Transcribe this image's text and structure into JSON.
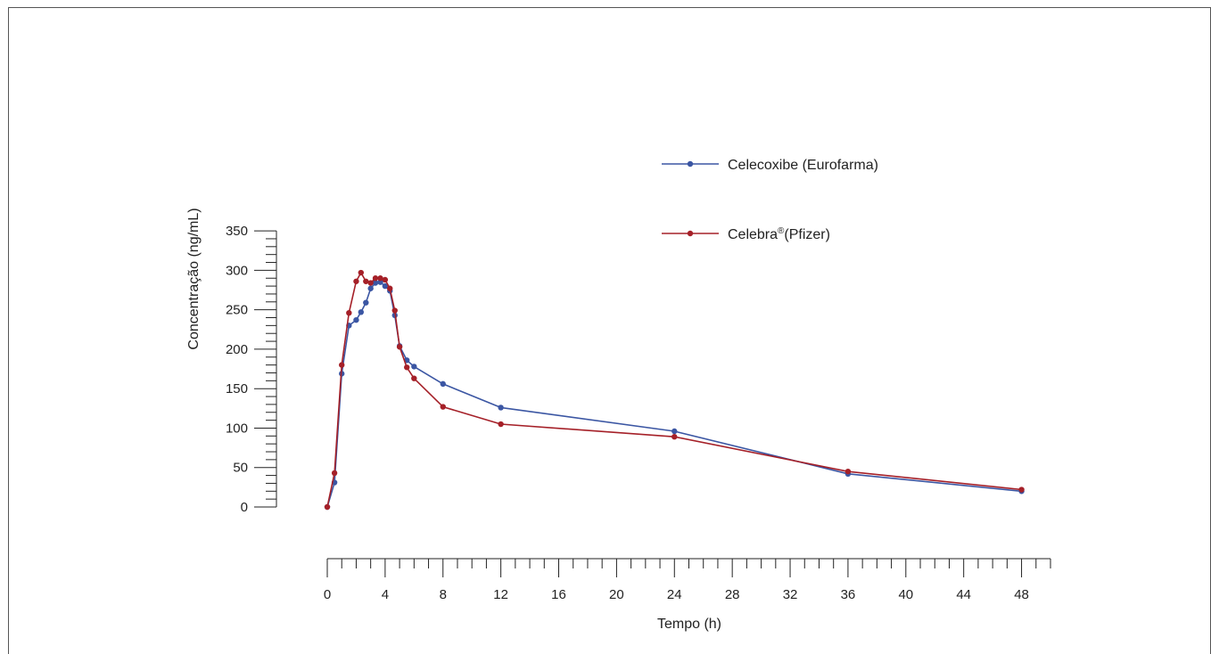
{
  "chart_data": {
    "type": "line",
    "xlabel": "Tempo (h)",
    "ylabel": "Concentração (ng/mL)",
    "xlim": [
      0,
      50
    ],
    "ylim": [
      0,
      350
    ],
    "x_ticks": [
      0,
      4,
      8,
      12,
      16,
      20,
      24,
      28,
      32,
      36,
      40,
      44,
      48
    ],
    "y_ticks": [
      0,
      50,
      100,
      150,
      200,
      250,
      300,
      350
    ],
    "grid": false,
    "legend_position": "top-right",
    "series": [
      {
        "name": "Celecoxibe (Eurofarma)",
        "color": "#3b56a3",
        "x": [
          0,
          0.5,
          1,
          1.5,
          2,
          2.33,
          2.67,
          3,
          3.33,
          3.67,
          4,
          4.33,
          4.67,
          5,
          5.5,
          6,
          8,
          12,
          24,
          36,
          48
        ],
        "y": [
          0,
          31,
          169,
          230,
          237,
          247,
          259,
          277,
          284,
          285,
          280,
          274,
          243,
          204,
          186,
          178,
          156,
          126,
          96,
          42,
          20
        ]
      },
      {
        "name": "Celebra® (Pfizer)",
        "color": "#a52028",
        "x": [
          0,
          0.5,
          1,
          1.5,
          2,
          2.33,
          2.67,
          3,
          3.33,
          3.67,
          4,
          4.33,
          4.67,
          5,
          5.5,
          6,
          8,
          12,
          24,
          36,
          48
        ],
        "y": [
          0,
          43,
          180,
          246,
          286,
          297,
          286,
          284,
          290,
          290,
          288,
          277,
          249,
          203,
          177,
          163,
          127,
          105,
          89,
          45,
          22
        ]
      }
    ]
  },
  "legend": {
    "entries": [
      {
        "label": "Celecoxibe (Eurofarma)",
        "color": "#3b56a3"
      },
      {
        "label_main": "Celebra",
        "label_sup": "®",
        "label_tail": "(Pfizer)",
        "color": "#a52028"
      }
    ]
  }
}
